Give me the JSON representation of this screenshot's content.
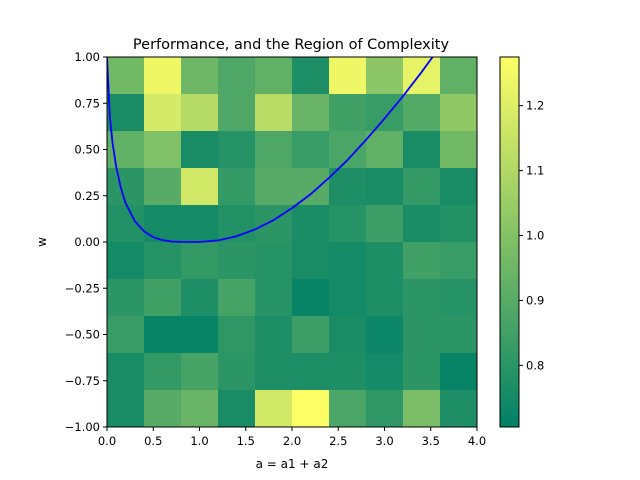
{
  "chart_data": {
    "type": "heatmap",
    "title": "Performance, and the Region of Complexity",
    "xlabel": "a = a1 + a2",
    "ylabel": "w",
    "xlim": [
      0.0,
      4.0
    ],
    "ylim": [
      -1.0,
      1.0
    ],
    "grid": false,
    "x_ticks": [
      0.0,
      0.5,
      1.0,
      1.5,
      2.0,
      2.5,
      3.0,
      3.5,
      4.0
    ],
    "x_tick_labels": [
      "0.0",
      "0.5",
      "1.0",
      "1.5",
      "2.0",
      "2.5",
      "3.0",
      "3.5",
      "4.0"
    ],
    "y_ticks": [
      1.0,
      0.75,
      0.5,
      0.25,
      0.0,
      -0.25,
      -0.5,
      -0.75,
      -1.0
    ],
    "y_tick_labels": [
      "1.00",
      "0.75",
      "0.50",
      "0.25",
      "0.00",
      "−0.25",
      "−0.50",
      "−0.75",
      "−1.00"
    ],
    "x_edges": [
      0.0,
      0.4,
      0.8,
      1.2,
      1.6,
      2.0,
      2.4,
      2.8,
      3.2,
      3.6,
      4.0
    ],
    "y_edges": [
      1.0,
      0.8,
      0.6,
      0.4,
      0.2,
      0.0,
      -0.2,
      -0.4,
      -0.6,
      -0.8,
      -1.0
    ],
    "cells": [
      [
        0.96,
        1.24,
        0.95,
        0.88,
        0.92,
        0.77,
        1.24,
        1.02,
        1.22,
        0.92
      ],
      [
        0.76,
        1.18,
        1.11,
        0.88,
        1.12,
        0.94,
        0.85,
        0.83,
        0.89,
        1.03
      ],
      [
        0.92,
        0.99,
        0.76,
        0.79,
        0.88,
        0.83,
        0.87,
        0.92,
        0.76,
        0.96
      ],
      [
        0.8,
        0.9,
        1.17,
        0.82,
        0.9,
        0.9,
        0.77,
        0.76,
        0.82,
        0.76
      ],
      [
        0.78,
        0.75,
        0.75,
        0.78,
        0.8,
        0.76,
        0.79,
        0.84,
        0.76,
        0.78
      ],
      [
        0.75,
        0.79,
        0.82,
        0.8,
        0.79,
        0.76,
        0.75,
        0.77,
        0.85,
        0.83
      ],
      [
        0.8,
        0.85,
        0.77,
        0.86,
        0.79,
        0.72,
        0.75,
        0.77,
        0.8,
        0.79
      ],
      [
        0.83,
        0.72,
        0.72,
        0.81,
        0.77,
        0.84,
        0.76,
        0.73,
        0.8,
        0.8
      ],
      [
        0.76,
        0.82,
        0.86,
        0.8,
        0.77,
        0.77,
        0.77,
        0.75,
        0.8,
        0.72
      ],
      [
        0.76,
        0.9,
        0.94,
        0.76,
        1.17,
        1.27,
        0.87,
        0.81,
        0.98,
        0.77
      ]
    ],
    "colorbar": {
      "range": [
        0.705,
        1.275
      ],
      "ticks": [
        0.8,
        0.9,
        1.0,
        1.1,
        1.2
      ],
      "tick_labels": [
        "0.8",
        "0.9",
        "1.0",
        "1.1",
        "1.2"
      ],
      "colormap": [
        "#008066",
        "#ffff66"
      ]
    },
    "series": [
      {
        "color": "#0000ff",
        "x": [
          0.0,
          0.03,
          0.06,
          0.1,
          0.15,
          0.2,
          0.3,
          0.4,
          0.5,
          0.6,
          0.7,
          0.8,
          0.9,
          1.0,
          1.2,
          1.4,
          1.6,
          1.8,
          2.0,
          2.2,
          2.4,
          2.6,
          2.8,
          3.0,
          3.2,
          3.4,
          3.6,
          3.8,
          4.0
        ],
        "y": [
          1.0,
          0.683,
          0.535,
          0.405,
          0.292,
          0.211,
          0.113,
          0.058,
          0.026,
          0.01,
          0.0025,
          0.0005,
          0.0,
          0.0,
          0.009,
          0.031,
          0.068,
          0.118,
          0.183,
          0.258,
          0.347,
          0.443,
          0.552,
          0.667,
          0.788,
          0.918,
          1.055,
          1.198,
          1.35
        ]
      }
    ]
  }
}
